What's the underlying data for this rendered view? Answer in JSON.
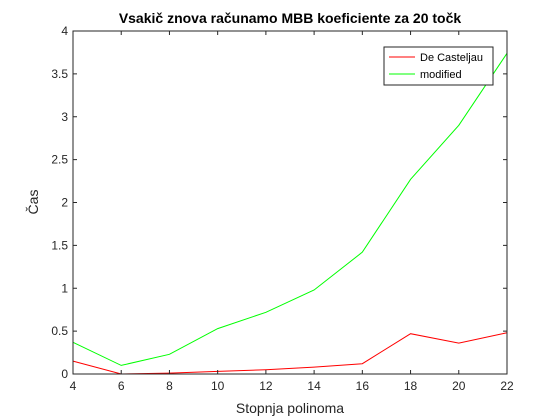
{
  "chart_data": {
    "type": "line",
    "title": "Vsakič znova računamo MBB koeficiente za 20 točk",
    "xlabel": "Stopnja polinoma",
    "ylabel": "Čas",
    "xlim": [
      4,
      22
    ],
    "ylim": [
      0,
      4
    ],
    "xticks": [
      "4",
      "6",
      "8",
      "10",
      "12",
      "14",
      "16",
      "18",
      "20",
      "22"
    ],
    "yticks": [
      "0",
      "0.5",
      "1",
      "1.5",
      "2",
      "2.5",
      "3",
      "3.5",
      "4"
    ],
    "x": [
      4,
      6,
      8,
      10,
      12,
      14,
      16,
      18,
      20,
      22
    ],
    "series": [
      {
        "name": "De Casteljau",
        "color": "#ff0000",
        "values": [
          0.15,
          0.0,
          0.01,
          0.03,
          0.05,
          0.08,
          0.12,
          0.47,
          0.36,
          0.48
        ]
      },
      {
        "name": "modified",
        "color": "#00ff00",
        "values": [
          0.37,
          0.1,
          0.23,
          0.53,
          0.72,
          0.98,
          1.42,
          2.27,
          2.9,
          3.74
        ]
      }
    ],
    "grid": false,
    "legend": "top-right"
  }
}
